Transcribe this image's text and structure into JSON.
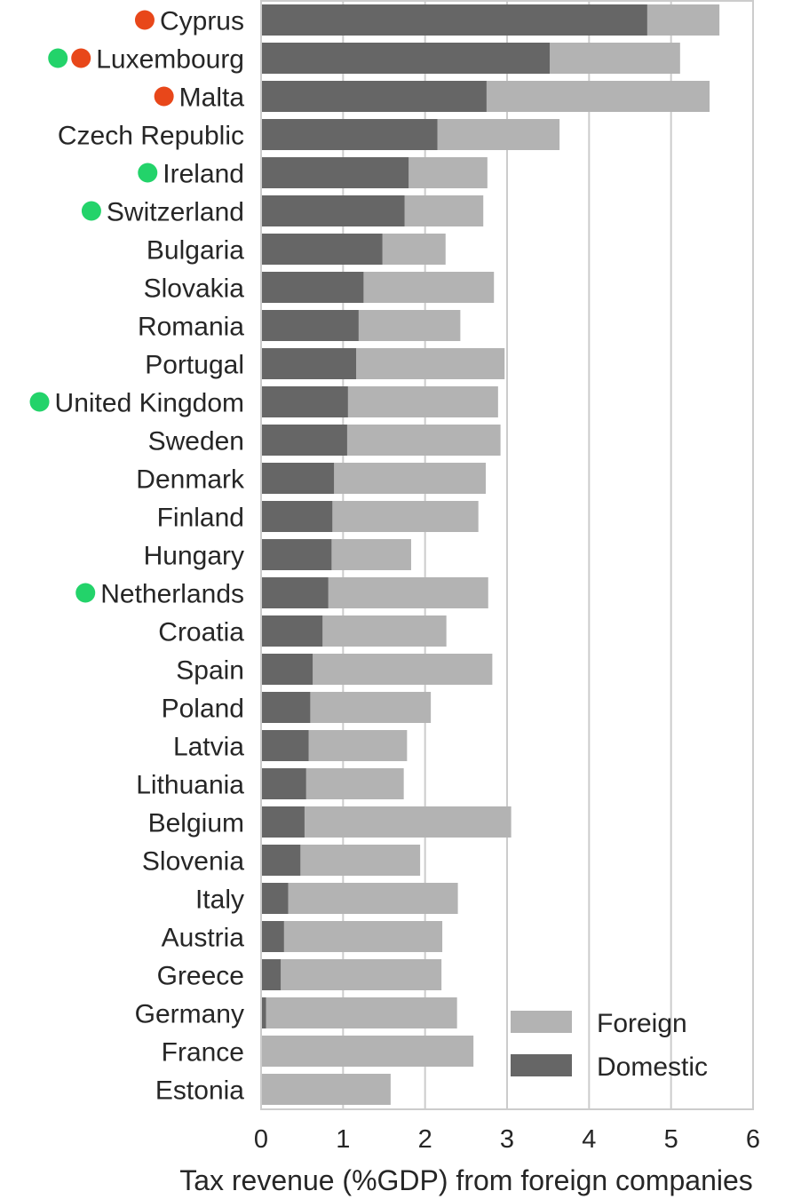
{
  "chart_data": {
    "type": "bar",
    "orientation": "horizontal",
    "stacked": true,
    "xlabel": "Tax revenue (%GDP) from foreign companies",
    "xlim": [
      0,
      6
    ],
    "x_ticks": [
      "0",
      "1",
      "2",
      "3",
      "4",
      "5",
      "6"
    ],
    "grid": "vertical",
    "legend_position": "bottom-right",
    "categories": [
      "Cyprus",
      "Luxembourg",
      "Malta",
      "Czech Republic",
      "Ireland",
      "Switzerland",
      "Bulgaria",
      "Slovakia",
      "Romania",
      "Portugal",
      "United Kingdom",
      "Sweden",
      "Denmark",
      "Finland",
      "Hungary",
      "Netherlands",
      "Croatia",
      "Spain",
      "Poland",
      "Latvia",
      "Lithuania",
      "Belgium",
      "Slovenia",
      "Italy",
      "Austria",
      "Greece",
      "Germany",
      "France",
      "Estonia"
    ],
    "series": [
      {
        "name": "Domestic",
        "color": "#666666",
        "values": [
          4.71,
          3.52,
          2.75,
          2.15,
          1.8,
          1.75,
          1.48,
          1.25,
          1.19,
          1.16,
          1.06,
          1.05,
          0.89,
          0.87,
          0.86,
          0.82,
          0.75,
          0.63,
          0.6,
          0.58,
          0.55,
          0.53,
          0.48,
          0.33,
          0.28,
          0.24,
          0.06,
          0.01,
          0.0
        ]
      },
      {
        "name": "Foreign",
        "color": "#b3b3b3",
        "values": [
          0.88,
          1.59,
          2.72,
          1.49,
          0.96,
          0.96,
          0.77,
          1.59,
          1.24,
          1.81,
          1.83,
          1.87,
          1.85,
          1.78,
          0.97,
          1.95,
          1.51,
          2.19,
          1.47,
          1.2,
          1.19,
          2.52,
          1.46,
          2.07,
          1.93,
          1.96,
          2.33,
          2.58,
          1.58
        ]
      }
    ],
    "markers": {
      "Cyprus": [
        "#e8471a"
      ],
      "Luxembourg": [
        "#23d36a",
        "#e8471a"
      ],
      "Malta": [
        "#e8471a"
      ],
      "Ireland": [
        "#23d36a"
      ],
      "Switzerland": [
        "#23d36a"
      ],
      "United Kingdom": [
        "#23d36a"
      ],
      "Netherlands": [
        "#23d36a"
      ]
    },
    "legend": {
      "foreign_label": "Foreign",
      "domestic_label": "Domestic"
    }
  }
}
